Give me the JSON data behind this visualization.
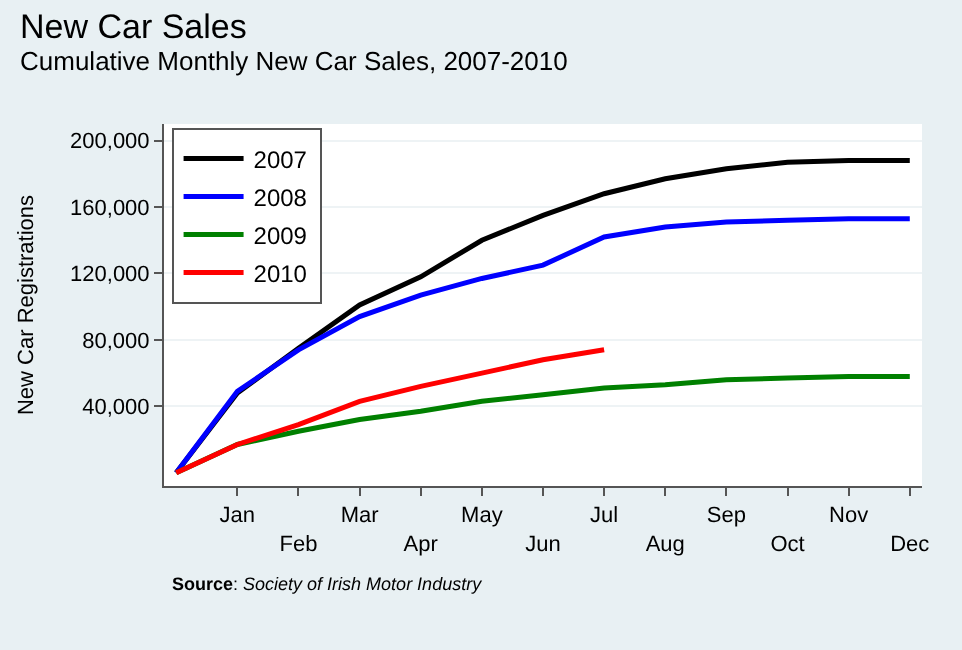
{
  "chart_data": {
    "type": "line",
    "title": "New Car Sales",
    "subtitle": "Cumulative Monthly New Car Sales, 2007-2010",
    "ylabel": "New Car Registrations",
    "annotations": [
      "Source: Society of Irish Motor Industry"
    ],
    "categories": [
      null,
      "Jan",
      "Feb",
      "Mar",
      "Apr",
      "May",
      "Jun",
      "Jul",
      "Aug",
      "Sep",
      "Oct",
      "Nov",
      "Dec"
    ],
    "series": [
      {
        "name": "2007",
        "color": "#000000",
        "values": [
          0,
          48000,
          75000,
          101000,
          118000,
          140000,
          155000,
          168000,
          177000,
          183000,
          187000,
          188000,
          188000
        ]
      },
      {
        "name": "2008",
        "color": "#0000ff",
        "values": [
          0,
          49000,
          74000,
          94000,
          107000,
          117000,
          125000,
          142000,
          148000,
          151000,
          152000,
          153000,
          153000
        ]
      },
      {
        "name": "2009",
        "color": "#008000",
        "values": [
          0,
          17000,
          25000,
          32000,
          37000,
          43000,
          47000,
          51000,
          53000,
          56000,
          57000,
          58000,
          58000
        ]
      },
      {
        "name": "2010",
        "color": "#ff0000",
        "values": [
          0,
          17000,
          29000,
          43000,
          52000,
          60000,
          68000,
          74000,
          null,
          null,
          null,
          null,
          null
        ]
      }
    ],
    "ylim": [
      -8000,
      210000
    ],
    "yticks": [
      {
        "value": 40000,
        "label": "40,000"
      },
      {
        "value": 80000,
        "label": "80,000"
      },
      {
        "value": 120000,
        "label": "120,000"
      },
      {
        "value": 160000,
        "label": "160,000"
      },
      {
        "value": 200000,
        "label": "200,000"
      }
    ],
    "grid": "y",
    "legend": "top left",
    "marker": "none",
    "line_style": "solid"
  }
}
